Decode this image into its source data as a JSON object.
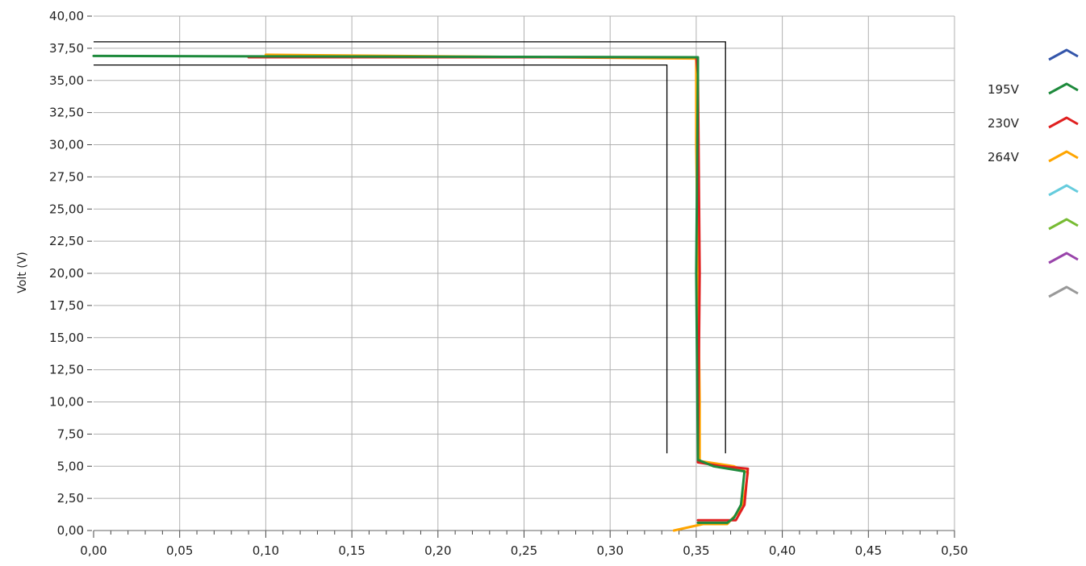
{
  "chart_data": {
    "type": "line",
    "title": "",
    "xlabel": "",
    "ylabel": "Volt (V)",
    "xlim": [
      0,
      0.5
    ],
    "ylim": [
      0,
      40
    ],
    "x_ticks": [
      0,
      0.05,
      0.1,
      0.15,
      0.2,
      0.25,
      0.3,
      0.35,
      0.4,
      0.45,
      0.5
    ],
    "x_tick_labels": [
      "0,00",
      "0,05",
      "0,10",
      "0,15",
      "0,20",
      "0,25",
      "0,30",
      "0,35",
      "0,40",
      "0,45",
      "0,50"
    ],
    "y_ticks": [
      0,
      2.5,
      5,
      7.5,
      10,
      12.5,
      15,
      17.5,
      20,
      22.5,
      25,
      27.5,
      30,
      32.5,
      35,
      37.5,
      40
    ],
    "y_tick_labels": [
      "0,00",
      "2,50",
      "5,00",
      "7,50",
      "10,00",
      "12,50",
      "15,00",
      "17,50",
      "20,00",
      "22,50",
      "25,00",
      "27,50",
      "30,00",
      "32,50",
      "35,00",
      "37,50",
      "40,00"
    ],
    "grid": true,
    "legend_position": "right",
    "limit_lines": [
      {
        "color": "#000000",
        "points": [
          [
            0,
            38.0
          ],
          [
            0.367,
            38.0
          ],
          [
            0.367,
            6.0
          ]
        ]
      },
      {
        "color": "#000000",
        "points": [
          [
            0,
            36.2
          ],
          [
            0.333,
            36.2
          ],
          [
            0.333,
            6.0
          ]
        ]
      }
    ],
    "series": [
      {
        "name": "",
        "color": "#3355aa",
        "points": []
      },
      {
        "name": "195V",
        "color": "#1e8a3c",
        "points": [
          [
            0,
            36.9
          ],
          [
            0.351,
            36.8
          ],
          [
            0.351,
            35.5
          ],
          [
            0.35,
            20.0
          ],
          [
            0.351,
            5.5
          ],
          [
            0.36,
            5.0
          ],
          [
            0.378,
            4.6
          ],
          [
            0.376,
            2.0
          ],
          [
            0.372,
            1.0
          ],
          [
            0.368,
            0.6
          ],
          [
            0.351,
            0.6
          ]
        ]
      },
      {
        "name": "230V",
        "color": "#e02020",
        "points": [
          [
            0.09,
            36.8
          ],
          [
            0.35,
            36.8
          ],
          [
            0.351,
            35.5
          ],
          [
            0.352,
            20.0
          ],
          [
            0.351,
            5.3
          ],
          [
            0.365,
            5.0
          ],
          [
            0.38,
            4.8
          ],
          [
            0.378,
            2.0
          ],
          [
            0.373,
            0.8
          ],
          [
            0.351,
            0.8
          ]
        ]
      },
      {
        "name": "264V",
        "color": "#ffa500",
        "points": [
          [
            0.1,
            37.0
          ],
          [
            0.35,
            36.7
          ],
          [
            0.35,
            30.0
          ],
          [
            0.352,
            10.0
          ],
          [
            0.352,
            5.4
          ],
          [
            0.372,
            5.0
          ],
          [
            0.38,
            4.5
          ],
          [
            0.377,
            1.8
          ],
          [
            0.368,
            0.5
          ],
          [
            0.354,
            0.5
          ],
          [
            0.337,
            0.0
          ]
        ]
      },
      {
        "name": "",
        "color": "#66ccdd",
        "points": []
      },
      {
        "name": "",
        "color": "#77bb33",
        "points": []
      },
      {
        "name": "",
        "color": "#9944aa",
        "points": []
      },
      {
        "name": "",
        "color": "#999999",
        "points": []
      }
    ]
  }
}
